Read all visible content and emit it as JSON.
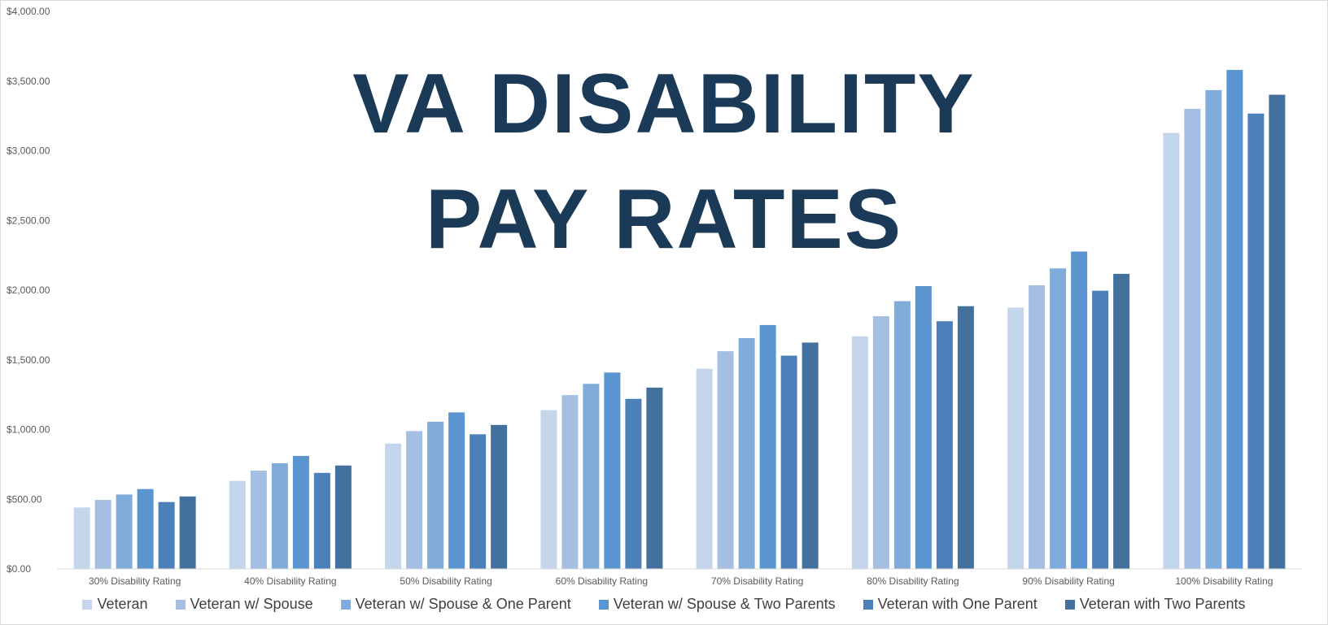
{
  "chart_data": {
    "type": "bar",
    "title_lines": [
      "VA DISABILITY",
      "PAY RATES"
    ],
    "xlabel": "",
    "ylabel": "",
    "ylim": [
      0,
      4000
    ],
    "yticks": [
      0,
      500,
      1000,
      1500,
      2000,
      2500,
      3000,
      3500,
      4000
    ],
    "ytick_labels": [
      "$0.00",
      "$500.00",
      "$1,000.00",
      "$1,500.00",
      "$2,000.00",
      "$2,500.00",
      "$3,000.00",
      "$3,500.00",
      "$4,000.00"
    ],
    "grid": false,
    "legend_position": "bottom",
    "categories": [
      "30% Disability Rating",
      "40% Disability Rating",
      "50% Disability Rating",
      "60% Disability Rating",
      "70% Disability Rating",
      "80% Disability Rating",
      "90% Disability Rating",
      "100% Disability Rating"
    ],
    "series": [
      {
        "name": "Veteran",
        "color": "#c5d6ec",
        "values": [
          441,
          632,
          899,
          1139,
          1436,
          1669,
          1875,
          3128
        ]
      },
      {
        "name": "Veteran w/ Spouse",
        "color": "#a4bfe2",
        "values": [
          495,
          705,
          989,
          1247,
          1562,
          1813,
          2035,
          3301
        ]
      },
      {
        "name": "Veteran w/ Spouse & One Parent",
        "color": "#80acdc",
        "values": [
          534,
          758,
          1056,
          1328,
          1656,
          1921,
          2156,
          3435
        ]
      },
      {
        "name": "Veteran w/ Spouse & Two Parents",
        "color": "#5b95cf",
        "values": [
          573,
          811,
          1123,
          1409,
          1750,
          2029,
          2277,
          3580
        ]
      },
      {
        "name": "Veteran with One Parent",
        "color": "#4b81b8",
        "values": [
          480,
          689,
          966,
          1220,
          1530,
          1777,
          1996,
          3267
        ]
      },
      {
        "name": "Veteran with Two Parents",
        "color": "#41719c",
        "values": [
          520,
          742,
          1033,
          1301,
          1624,
          1885,
          2117,
          3402
        ]
      }
    ]
  }
}
